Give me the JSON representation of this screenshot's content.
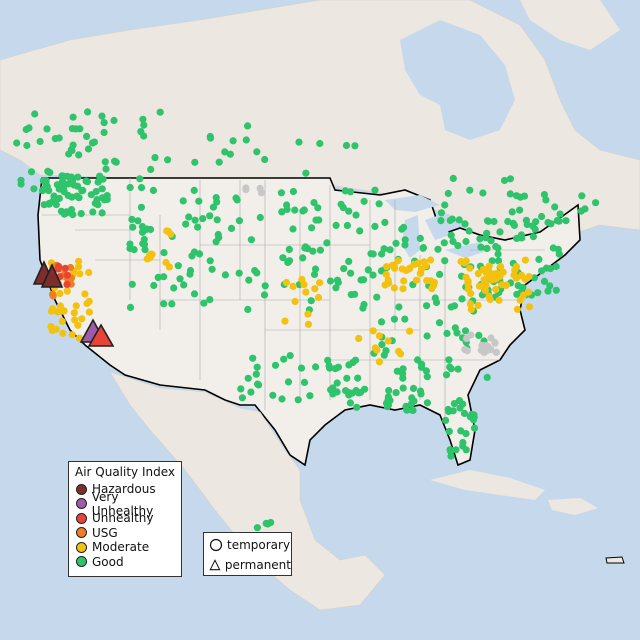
{
  "map": {
    "colors": {
      "water": "#c6d9ec",
      "land": "#ece7e1",
      "us_land": "#f2efea",
      "hazardous": "#7e2e2a",
      "very_unhealthy": "#9d5ba8",
      "unhealthy": "#e64437",
      "usg": "#ef7d22",
      "moderate": "#f3c10f",
      "good": "#2fc36b",
      "nodata": "#c7c7c7"
    }
  },
  "legend": {
    "title": "Air Quality Index",
    "items": [
      {
        "label": "Hazardous",
        "color": "#7e2e2a"
      },
      {
        "label": "Very Unhealthy",
        "color": "#9d5ba8"
      },
      {
        "label": "Unhealthy",
        "color": "#e64437"
      },
      {
        "label": "USG",
        "color": "#ef7d22"
      },
      {
        "label": "Moderate",
        "color": "#f3c10f"
      },
      {
        "label": "Good",
        "color": "#2fc36b"
      }
    ]
  },
  "type_legend": {
    "temporary": "temporary",
    "permanent": "permanent"
  }
}
